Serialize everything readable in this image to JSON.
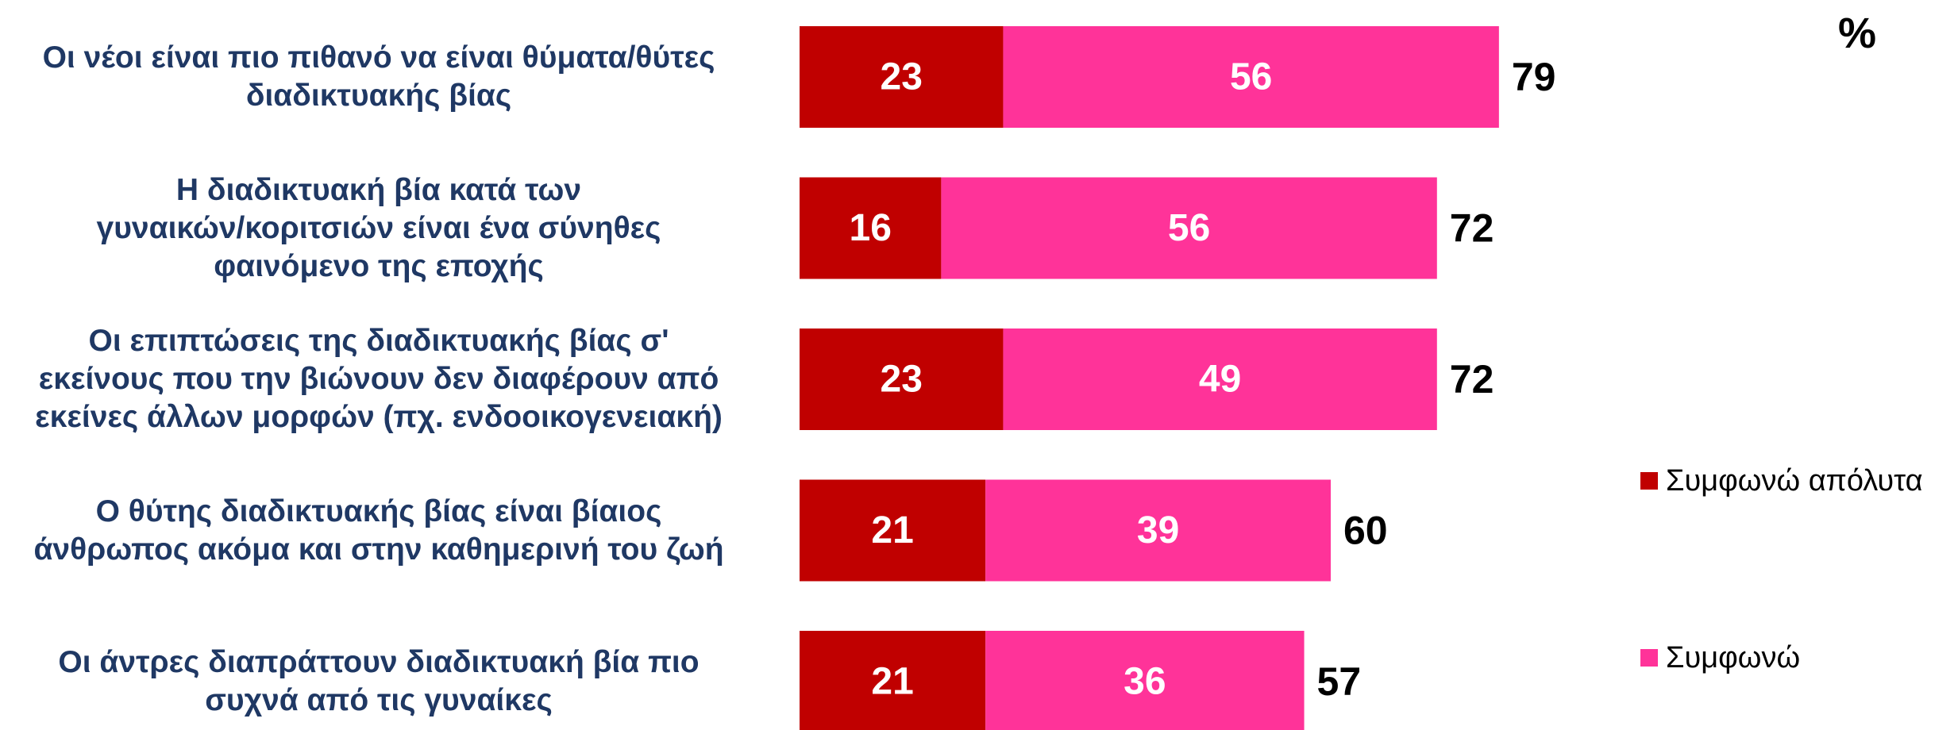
{
  "chart_data": {
    "type": "stacked-bar-horizontal",
    "unit": "%",
    "categories": [
      "Οι νέοι είναι πιο πιθανό να είναι θύματα/θύτες\nδιαδικτυακής βίας",
      "Η διαδικτυακή βία κατά των\nγυναικών/κοριτσιών είναι ένα σύνηθες\nφαινόμενο της εποχής",
      "Οι επιπτώσεις της διαδικτυακής βίας σ'\nεκείνους που την βιώνουν δεν διαφέρουν από\nεκείνες άλλων μορφών (πχ. ενδοοικογενειακή)",
      "Ο θύτης διαδικτυακής βίας είναι βίαιος\nάνθρωπος ακόμα και στην καθημερινή του ζωή",
      "Οι άντρες διαπράττουν διαδικτυακή βία πιο\nσυχνά από τις γυναίκες"
    ],
    "series": [
      {
        "name": "Συμφωνώ απόλυτα",
        "color": "#c00000",
        "values": [
          23,
          16,
          23,
          21,
          21
        ]
      },
      {
        "name": "Συμφωνώ",
        "color": "#ff3399",
        "values": [
          56,
          56,
          49,
          39,
          36
        ]
      }
    ],
    "totals": [
      79,
      72,
      72,
      60,
      57
    ],
    "legend": "right"
  }
}
